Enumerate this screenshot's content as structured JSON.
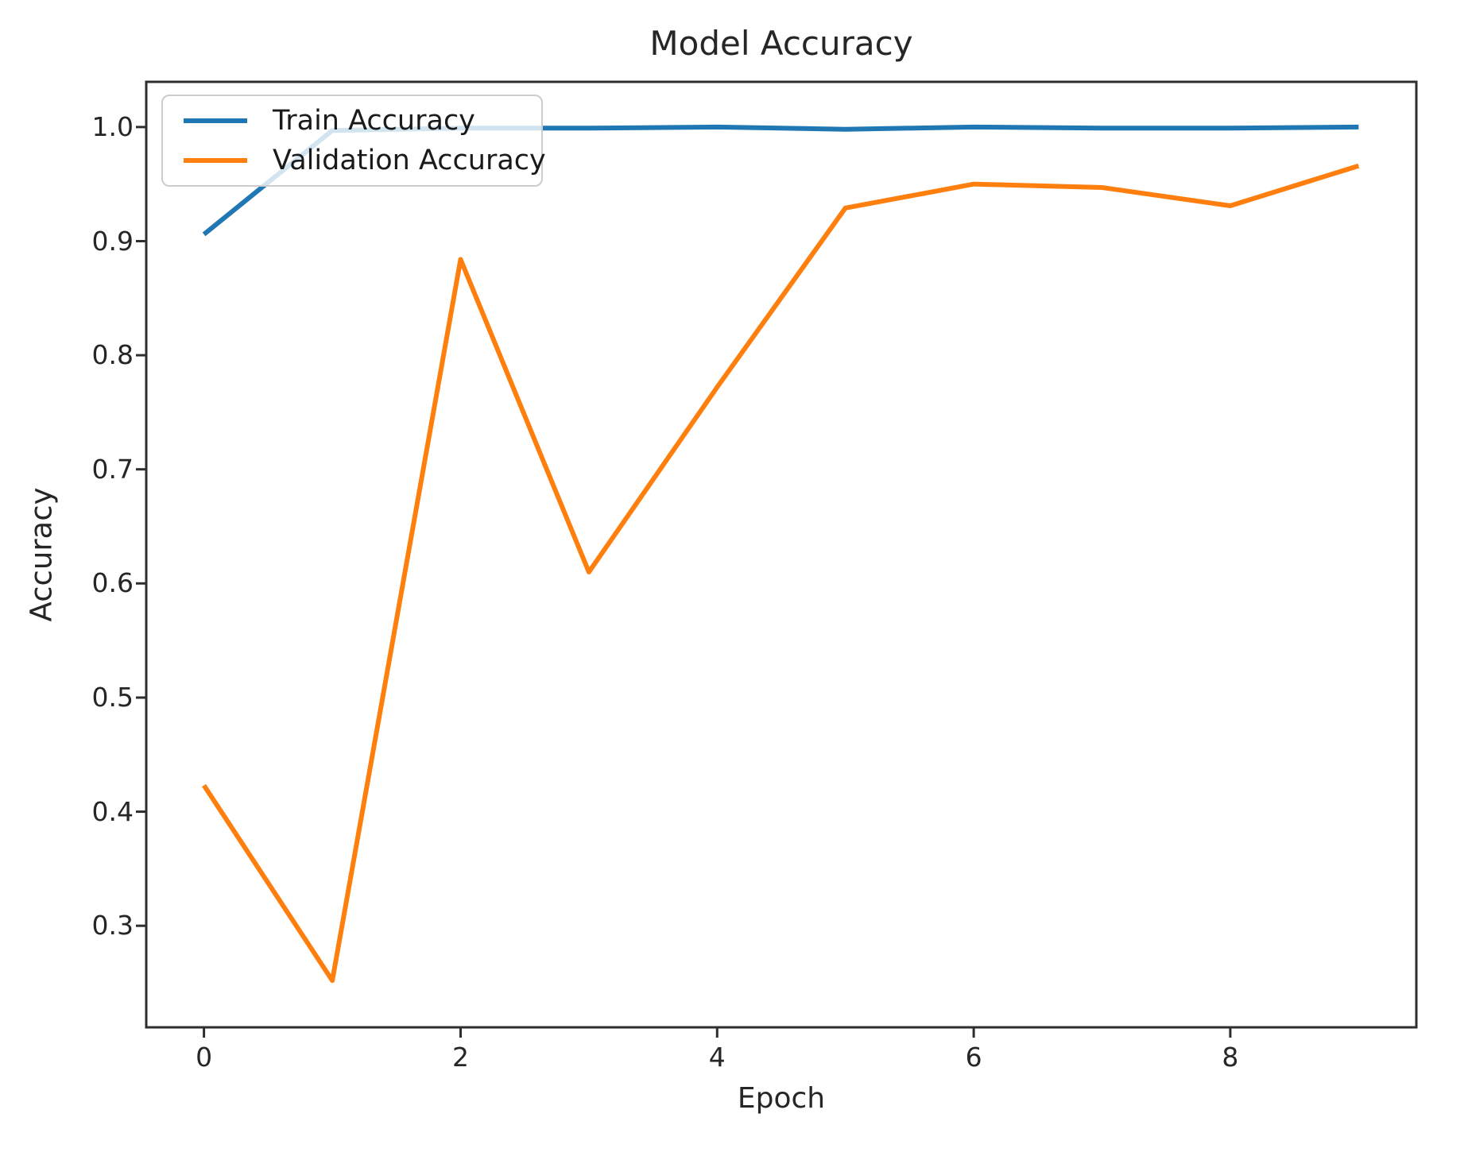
{
  "figure": {
    "title": "Model Accuracy",
    "xlabel": "Epoch",
    "ylabel": "Accuracy"
  },
  "legend": {
    "entries": [
      {
        "label": "Train Accuracy",
        "color": "#1f77b4"
      },
      {
        "label": "Validation Accuracy",
        "color": "#ff7f0e"
      }
    ]
  },
  "chart_data": {
    "type": "line",
    "title": "Model Accuracy",
    "xlabel": "Epoch",
    "ylabel": "Accuracy",
    "x": [
      0,
      1,
      2,
      3,
      4,
      5,
      6,
      7,
      8,
      9
    ],
    "series": [
      {
        "name": "Train Accuracy",
        "color": "#1f77b4",
        "values": [
          0.906,
          0.997,
          0.999,
          0.999,
          1.0,
          0.998,
          1.0,
          0.999,
          0.999,
          1.0
        ]
      },
      {
        "name": "Validation Accuracy",
        "color": "#ff7f0e",
        "values": [
          0.423,
          0.252,
          0.884,
          0.61,
          0.772,
          0.929,
          0.95,
          0.947,
          0.931,
          0.966
        ]
      }
    ],
    "xticks": [
      0,
      2,
      4,
      6,
      8
    ],
    "yticks": [
      0.3,
      0.4,
      0.5,
      0.6,
      0.7,
      0.8,
      0.9,
      1.0
    ],
    "xlim": [
      -0.45,
      9.45
    ],
    "ylim": [
      0.211,
      1.0396
    ],
    "grid": false,
    "legend_position": "upper-left"
  },
  "style": {
    "spine_color": "#2e2e2e",
    "tick_color": "#2e2e2e",
    "text_color": "#262626",
    "legend_border_color": "#cccccc",
    "background": "#ffffff"
  }
}
